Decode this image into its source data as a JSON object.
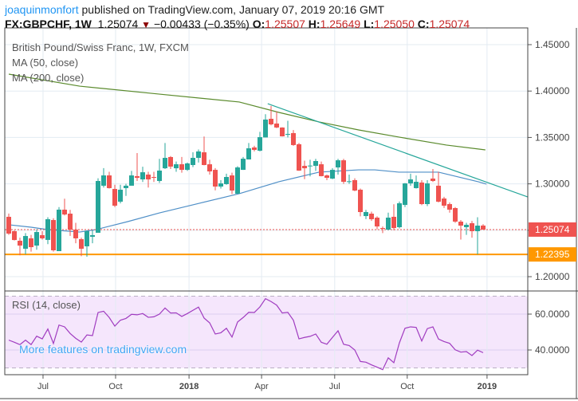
{
  "header": {
    "author": "joaquinmonfort",
    "published": "published on TradingView.com, January 07, 2019 20:16 GMT",
    "symbol": "FX:GBPCHF, 1W",
    "last": "1.25074",
    "change": "−0.00433 (−0.35%)",
    "o_label": "O:",
    "o": "1.25507",
    "h_label": "H:",
    "h": "1.25649",
    "l_label": "L:",
    "l": "1.25050",
    "c_label": "C:",
    "c": "1.25074",
    "down_icon": "triangle-down-icon"
  },
  "legend": {
    "title": "British Pound/Swiss Franc, 1W, FXCM",
    "ma50": "MA (50, close)",
    "ma200": "MA (200, close)",
    "rsi": "RSI (14, close)"
  },
  "promo": "More features on tradingview.com",
  "colors": {
    "up": "#26a69a",
    "down": "#ef5350",
    "ma50": "#4f8fc7",
    "ma200": "#5a8a2c",
    "trendline": "#26a69a",
    "rsi": "#a03cc0",
    "rsi_bg": "#f5e6fc",
    "support": "#ff9800",
    "last_price": "#ef5350",
    "grid": "#e3ebf2"
  },
  "chart_data": [
    {
      "type": "candlestick",
      "title": "British Pound/Swiss Franc, 1W, FXCM",
      "ylim": [
        1.18,
        1.468
      ],
      "y_ticks": [
        "1.20000",
        "1.25000",
        "1.30000",
        "1.35000",
        "1.40000",
        "1.45000"
      ],
      "x_ticks": [
        {
          "label": "Jul",
          "index": 6.14
        },
        {
          "label": "Oct",
          "index": 19.14
        },
        {
          "label": "2018",
          "index": 32.3,
          "bold": true
        },
        {
          "label": "Apr",
          "index": 45.3
        },
        {
          "label": "Jul",
          "index": 58.4
        },
        {
          "label": "Oct",
          "index": 71.4
        },
        {
          "label": "2019",
          "index": 85.7,
          "bold": true
        }
      ],
      "ohlc": [
        [
          1.2645,
          1.268,
          1.245,
          1.2464
        ],
        [
          1.249,
          1.25,
          1.239,
          1.2395
        ],
        [
          1.2387,
          1.242,
          1.223,
          1.2335
        ],
        [
          1.2301,
          1.247,
          1.224,
          1.2438
        ],
        [
          1.2413,
          1.245,
          1.227,
          1.2318
        ],
        [
          1.2335,
          1.251,
          1.229,
          1.2481
        ],
        [
          1.2447,
          1.249,
          1.24,
          1.2413
        ],
        [
          1.2396,
          1.264,
          1.235,
          1.2619
        ],
        [
          1.261,
          1.263,
          1.227,
          1.2284
        ],
        [
          1.2275,
          1.275,
          1.2275,
          1.2722
        ],
        [
          1.2722,
          1.284,
          1.266,
          1.267
        ],
        [
          1.2679,
          1.272,
          1.244,
          1.2507
        ],
        [
          1.2507,
          1.258,
          1.236,
          1.2413
        ],
        [
          1.2404,
          1.242,
          1.222,
          1.2301
        ],
        [
          1.2327,
          1.25,
          1.2215,
          1.249
        ],
        [
          1.243,
          1.25,
          1.236,
          1.2447
        ],
        [
          1.2473,
          1.306,
          1.2473,
          1.3031
        ],
        [
          1.298,
          1.317,
          1.296,
          1.3091
        ],
        [
          1.3091,
          1.313,
          1.295,
          1.2954
        ],
        [
          1.2945,
          1.299,
          1.275,
          1.2765
        ],
        [
          1.2808,
          1.299,
          1.279,
          1.2937
        ],
        [
          1.2954,
          1.3,
          1.287,
          1.298
        ],
        [
          1.298,
          1.314,
          1.299,
          1.3091
        ],
        [
          1.3083,
          1.3332,
          1.3031,
          1.3065
        ],
        [
          1.3048,
          1.3185,
          1.302,
          1.3125
        ],
        [
          1.31,
          1.313,
          1.296,
          1.3048
        ],
        [
          1.3074,
          1.313,
          1.302,
          1.3065
        ],
        [
          1.3031,
          1.327,
          1.301,
          1.3143
        ],
        [
          1.3168,
          1.344,
          1.316,
          1.328
        ],
        [
          1.3289,
          1.33,
          1.316,
          1.3186
        ],
        [
          1.3168,
          1.324,
          1.313,
          1.3211
        ],
        [
          1.3211,
          1.329,
          1.312,
          1.3151
        ],
        [
          1.3151,
          1.323,
          1.314,
          1.322
        ],
        [
          1.3203,
          1.334,
          1.318,
          1.328
        ],
        [
          1.328,
          1.337,
          1.323,
          1.3349
        ],
        [
          1.334,
          1.351,
          1.32,
          1.3203
        ],
        [
          1.3211,
          1.326,
          1.31,
          1.3134
        ],
        [
          1.3151,
          1.317,
          1.293,
          1.2971
        ],
        [
          1.2971,
          1.304,
          1.295,
          1.3005
        ],
        [
          1.2997,
          1.311,
          1.299,
          1.3074
        ],
        [
          1.3091,
          1.312,
          1.289,
          1.2928
        ],
        [
          1.2894,
          1.319,
          1.2894,
          1.3177
        ],
        [
          1.3151,
          1.329,
          1.315,
          1.3271
        ],
        [
          1.3263,
          1.344,
          1.3263,
          1.3383
        ],
        [
          1.3392,
          1.341,
          1.335,
          1.3366
        ],
        [
          1.3357,
          1.356,
          1.335,
          1.3503
        ],
        [
          1.35,
          1.375,
          1.35,
          1.3693
        ],
        [
          1.3701,
          1.384,
          1.363,
          1.3641
        ],
        [
          1.365,
          1.378,
          1.36,
          1.3607
        ],
        [
          1.3607,
          1.361,
          1.351,
          1.3512
        ],
        [
          1.353,
          1.368,
          1.35,
          1.3538
        ],
        [
          1.3547,
          1.358,
          1.341,
          1.3418
        ],
        [
          1.3427,
          1.344,
          1.314,
          1.3143
        ],
        [
          1.3194,
          1.325,
          1.305,
          1.3168
        ],
        [
          1.319,
          1.326,
          1.308,
          1.3197
        ],
        [
          1.3194,
          1.327,
          1.314,
          1.3246
        ],
        [
          1.3211,
          1.324,
          1.308,
          1.3083
        ],
        [
          1.3091,
          1.31,
          1.304,
          1.3065
        ],
        [
          1.3057,
          1.317,
          1.305,
          1.3151
        ],
        [
          1.3177,
          1.327,
          1.31,
          1.3254
        ],
        [
          1.3254,
          1.327,
          1.3,
          1.3022
        ],
        [
          1.302,
          1.31,
          1.3,
          1.3028
        ],
        [
          1.304,
          1.306,
          1.292,
          1.2928
        ],
        [
          1.2937,
          1.295,
          1.265,
          1.2696
        ],
        [
          1.2653,
          1.272,
          1.262,
          1.2696
        ],
        [
          1.2679,
          1.27,
          1.26,
          1.2619
        ],
        [
          1.2636,
          1.265,
          1.251,
          1.2541
        ],
        [
          1.2524,
          1.254,
          1.247,
          1.2516
        ],
        [
          1.2507,
          1.269,
          1.25,
          1.2636
        ],
        [
          1.2645,
          1.278,
          1.25,
          1.2524
        ],
        [
          1.2533,
          1.281,
          1.252,
          1.2791
        ],
        [
          1.2773,
          1.301,
          1.275,
          1.3005
        ],
        [
          1.3005,
          1.311,
          1.298,
          1.3048
        ],
        [
          1.2954,
          1.309,
          1.295,
          1.3022
        ],
        [
          1.3014,
          1.304,
          1.277,
          1.2782
        ],
        [
          1.2782,
          1.304,
          1.276,
          1.3005
        ],
        [
          1.3057,
          1.316,
          1.302,
          1.3031
        ],
        [
          1.298,
          1.313,
          1.28,
          1.2808
        ],
        [
          1.2842,
          1.286,
          1.274,
          1.2765
        ],
        [
          1.2782,
          1.28,
          1.269,
          1.2722
        ],
        [
          1.2739,
          1.275,
          1.258,
          1.2593
        ],
        [
          1.2593,
          1.261,
          1.24,
          1.255
        ],
        [
          1.2533,
          1.258,
          1.245,
          1.2559
        ],
        [
          1.2576,
          1.26,
          1.242,
          1.249
        ],
        [
          1.249,
          1.264,
          1.224,
          1.255
        ],
        [
          1.25507,
          1.25649,
          1.2505,
          1.25074
        ]
      ],
      "ma50": [
        [
          0,
          1.2559
        ],
        [
          4,
          1.2533
        ],
        [
          7,
          1.2507
        ],
        [
          12.7,
          1.2481
        ],
        [
          15.6,
          1.2507
        ],
        [
          21.3,
          1.2593
        ],
        [
          27,
          1.2687
        ],
        [
          34.1,
          1.279
        ],
        [
          41.3,
          1.2894
        ],
        [
          48.4,
          1.3023
        ],
        [
          55.6,
          1.3126
        ],
        [
          62.7,
          1.3151
        ],
        [
          65.6,
          1.3151
        ],
        [
          69.9,
          1.3126
        ],
        [
          77,
          1.3126
        ],
        [
          84.1,
          1.3023
        ],
        [
          85.6,
          1.2997
        ]
      ],
      "ma200": [
        [
          0,
          1.4182
        ],
        [
          12.7,
          1.4053
        ],
        [
          27,
          1.3967
        ],
        [
          41.3,
          1.3882
        ],
        [
          48.4,
          1.377
        ],
        [
          55.6,
          1.3667
        ],
        [
          62.7,
          1.3581
        ],
        [
          69.9,
          1.3504
        ],
        [
          78.4,
          1.3418
        ],
        [
          85.4,
          1.3366
        ]
      ],
      "trendline": [
        [
          46.4,
          1.3864
        ],
        [
          93,
          1.2859
        ]
      ],
      "support_level": {
        "value": 1.22395,
        "label": "1.22395"
      },
      "last_price": {
        "value": 1.25074,
        "label": "1.25074"
      }
    },
    {
      "type": "line",
      "title": "RSI (14, close)",
      "ylim": [
        26,
        72
      ],
      "y_ticks": [
        "40.0000",
        "60.0000"
      ],
      "bands": [
        30,
        70
      ],
      "values": [
        45.5,
        44.3,
        43.0,
        45.5,
        43.0,
        47.7,
        46.2,
        51.7,
        43.6,
        53.9,
        52.9,
        49.2,
        46.5,
        44.4,
        48.4,
        48.0,
        60.9,
        61.6,
        58.1,
        53.3,
        56.6,
        57.6,
        59.9,
        59.6,
        60.3,
        58.2,
        58.5,
        60.0,
        63.4,
        60.6,
        60.7,
        58.7,
        60.3,
        62.1,
        63.9,
        57.8,
        55.1,
        48.9,
        49.6,
        52.1,
        47.2,
        55.6,
        58.1,
        61.0,
        60.9,
        64.0,
        68.6,
        67.0,
        65.0,
        60.6,
        61.0,
        56.6,
        46.2,
        47.0,
        47.6,
        48.9,
        44.3,
        43.2,
        47.0,
        50.7,
        43.2,
        42.5,
        40.0,
        33.6,
        33.2,
        31.7,
        30.4,
        29.0,
        35.6,
        32.9,
        44.0,
        52.1,
        52.9,
        52.6,
        45.0,
        51.9,
        52.9,
        46.1,
        44.7,
        43.7,
        40.1,
        38.8,
        39.1,
        36.9,
        39.9,
        38.5
      ]
    }
  ]
}
